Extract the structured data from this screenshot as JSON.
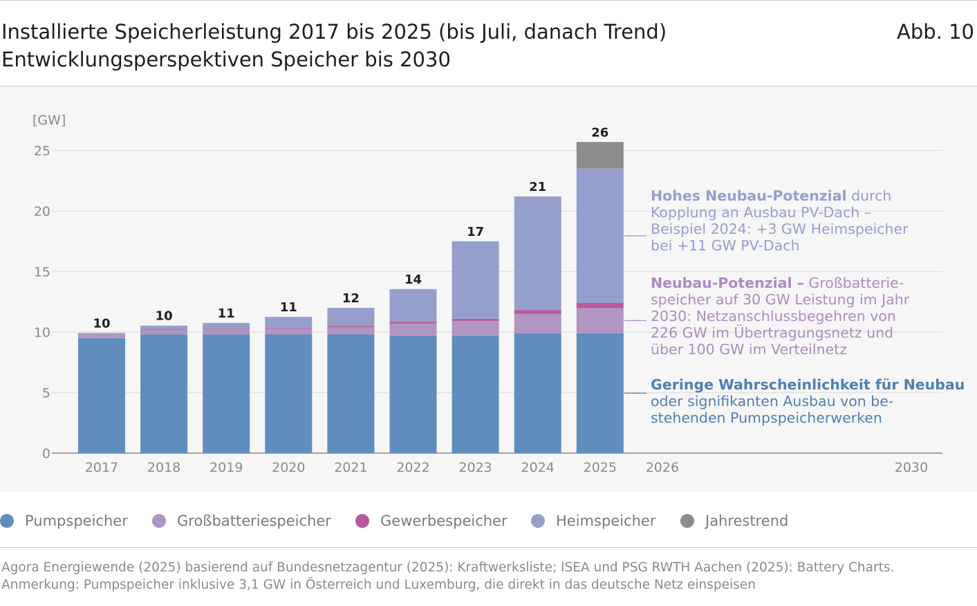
{
  "header": {
    "title_line1": "Installierte Speicherleistung 2017 bis 2025 (bis Juli, danach Trend)",
    "title_line2": "Entwicklungsperspektiven Speicher bis 2030",
    "figure_number": "Abb. 10"
  },
  "chart_data": {
    "type": "bar",
    "stacked": true,
    "ylabel": "[GW]",
    "ylim": [
      0,
      26
    ],
    "yticks": [
      0,
      5,
      10,
      15,
      20,
      25
    ],
    "grid": true,
    "legend_position": "bottom",
    "x_axis_labels": [
      "2017",
      "2018",
      "2019",
      "2020",
      "2021",
      "2022",
      "2023",
      "2024",
      "2025",
      "2026",
      "2030"
    ],
    "categories": [
      "2017",
      "2018",
      "2019",
      "2020",
      "2021",
      "2022",
      "2023",
      "2024",
      "2025"
    ],
    "totals": [
      "10",
      "10",
      "11",
      "11",
      "12",
      "14",
      "17",
      "21",
      "26"
    ],
    "series": [
      {
        "name": "Pumpspeicher",
        "color": "#5f8dbe",
        "values": [
          9.5,
          9.8,
          9.8,
          9.8,
          9.8,
          9.7,
          9.7,
          9.9,
          9.9
        ]
      },
      {
        "name": "Großbatteriespeicher",
        "color": "#b195c2",
        "values": [
          0.3,
          0.4,
          0.45,
          0.5,
          0.6,
          1.0,
          1.2,
          1.6,
          2.1
        ]
      },
      {
        "name": "Gewerbespeicher",
        "color": "#b9589b",
        "values": [
          0.02,
          0.03,
          0.05,
          0.05,
          0.1,
          0.15,
          0.2,
          0.3,
          0.4
        ]
      },
      {
        "name": "Heimspeicher",
        "color": "#969fcc",
        "values": [
          0.1,
          0.3,
          0.45,
          0.9,
          1.5,
          2.7,
          6.4,
          9.4,
          11.1
        ]
      },
      {
        "name": "Jahrestrend",
        "color": "#8c8c8c",
        "values": [
          0,
          0,
          0,
          0,
          0,
          0,
          0,
          0,
          2.2
        ]
      }
    ],
    "annotations": [
      {
        "target_series": "Heimspeicher",
        "color": "#969fcc",
        "bold": "Hohes Neubau-Potenzial",
        "lines": [
          "durch",
          "Kopplung an Ausbau PV-Dach –",
          "Beispiel 2024: +3 GW Heimspeicher",
          "bei +11 GW PV-Dach"
        ]
      },
      {
        "target_series": "Großbatteriespeicher",
        "color": "#ad8bc0",
        "bold": "Neubau-Potenzial –",
        "lines": [
          "Großbatterie-",
          "speicher auf 30 GW Leistung im Jahr",
          "2030: Netzanschlussbegehren von",
          "226 GW im Übertragungsnetz und",
          "über 100 GW im Verteilnetz"
        ]
      },
      {
        "target_series": "Pumpspeicher",
        "color": "#4f7fb3",
        "bold": "Geringe Wahrscheinlichkeit für Neubau",
        "lines": [
          "",
          "oder signifikanten Ausbau von be-",
          "stehenden Pumpspeicherwerken"
        ]
      }
    ]
  },
  "footer": {
    "source": "Agora Energiewende (2025) basierend auf Bundesnetzagentur (2025): Kraftwerksliste; ISEA und PSG RWTH Aachen (2025): Battery Charts.",
    "note": "Anmerkung: Pumpspeicher inklusive 3,1 GW in Österreich und Luxemburg, die direkt in das deutsche Netz einspeisen"
  }
}
